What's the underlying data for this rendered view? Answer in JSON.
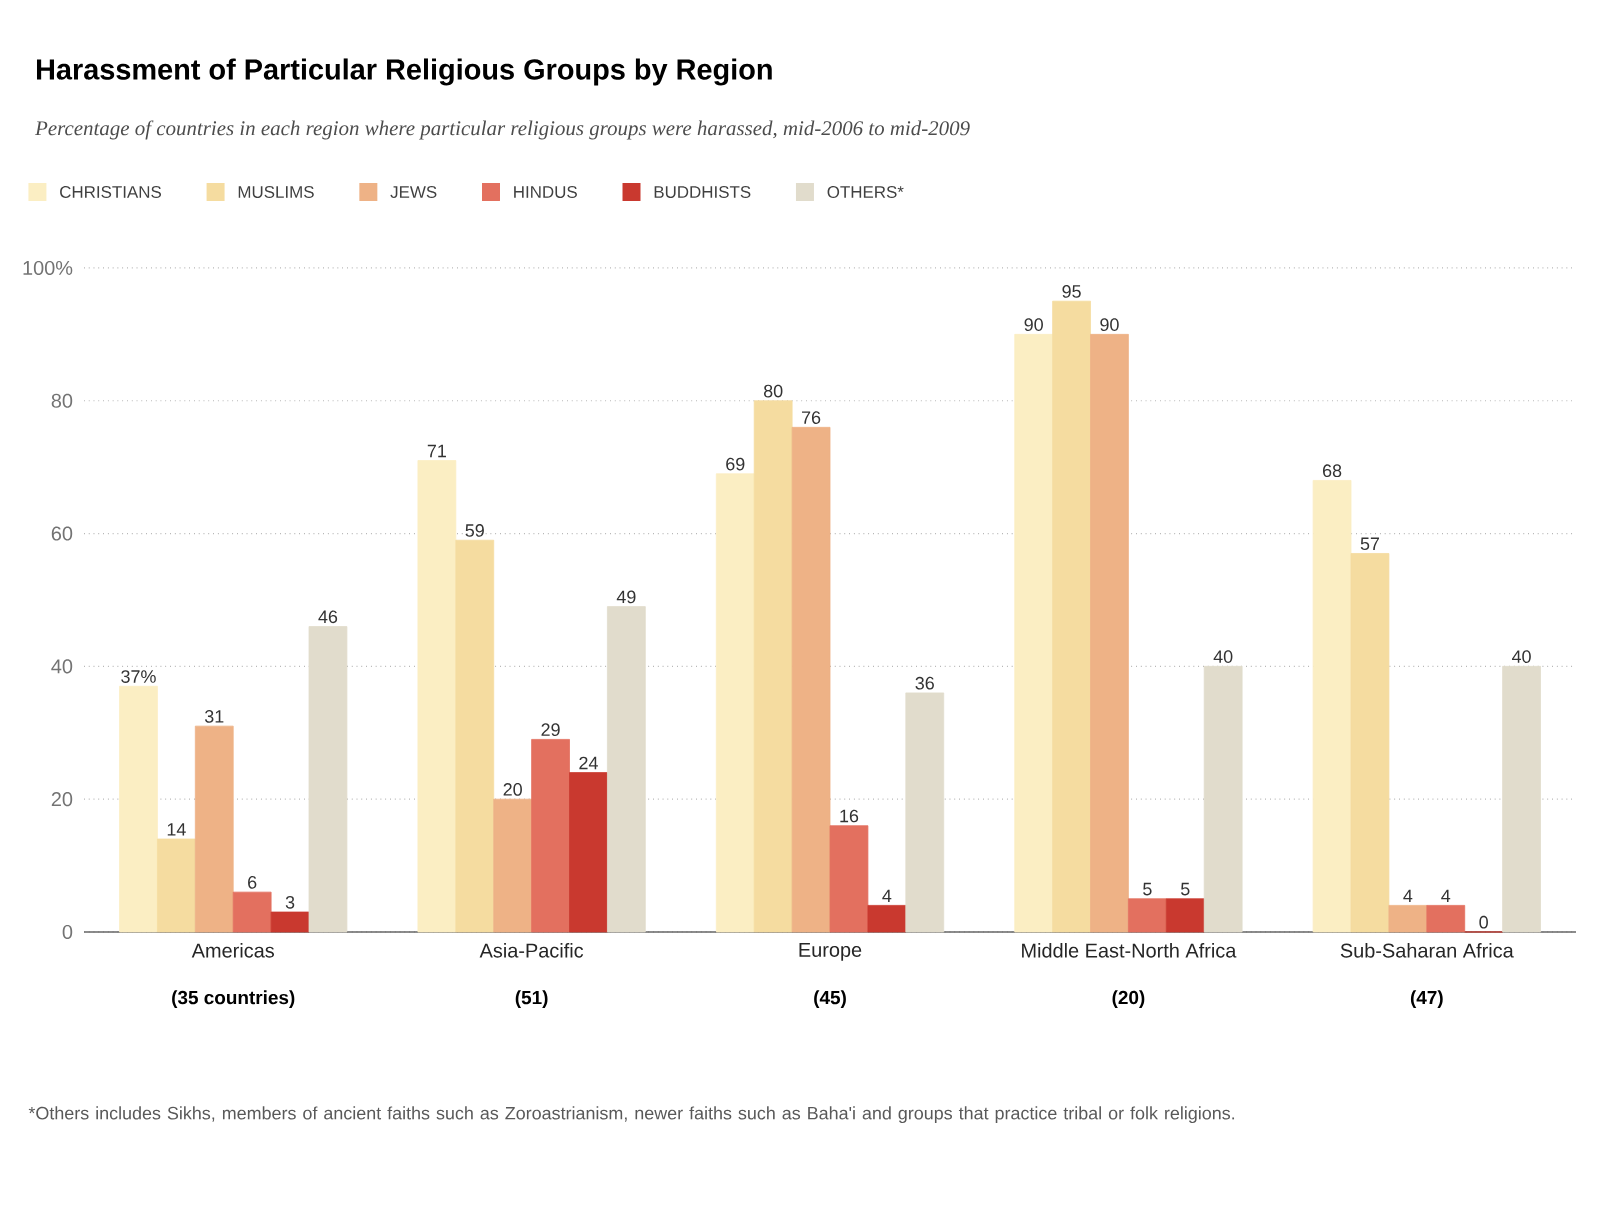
{
  "chart_data": {
    "type": "bar",
    "title": "Harassment of Particular Religious Groups by Region",
    "subtitle": "Percentage of countries in each region where particular religious groups were harassed, mid-2006 to mid-2009",
    "categories": [
      "Americas",
      "Asia-Pacific",
      "Europe",
      "Middle East-North Africa",
      "Sub-Saharan Africa"
    ],
    "series": [
      {
        "name": "CHRISTIANS",
        "color": "#fbeec3",
        "values": [
          37,
          71,
          69,
          90,
          68
        ],
        "value_labels": [
          "37%",
          "71",
          "69",
          "90",
          "68"
        ]
      },
      {
        "name": "MUSLIMS",
        "color": "#f5dca0",
        "values": [
          14,
          59,
          80,
          95,
          57
        ],
        "value_labels": [
          "14",
          "59",
          "80",
          "95",
          "57"
        ]
      },
      {
        "name": "JEWS",
        "color": "#eeb286",
        "values": [
          31,
          20,
          76,
          90,
          4
        ],
        "value_labels": [
          "31",
          "20",
          "76",
          "90",
          "4"
        ]
      },
      {
        "name": "HINDUS",
        "color": "#e3705f",
        "values": [
          6,
          29,
          16,
          5,
          4
        ],
        "value_labels": [
          "6",
          "29",
          "16",
          "5",
          "4"
        ]
      },
      {
        "name": "BUDDHISTS",
        "color": "#c9392f",
        "values": [
          3,
          24,
          4,
          5,
          0
        ],
        "value_labels": [
          "3",
          "24",
          "4",
          "5",
          "0"
        ]
      },
      {
        "name": "OTHERS*",
        "color": "#e1dccc",
        "values": [
          46,
          49,
          36,
          40,
          40
        ],
        "value_labels": [
          "46",
          "49",
          "36",
          "40",
          "40"
        ]
      }
    ],
    "ylim": [
      0,
      100
    ],
    "yticks": [
      0,
      20,
      40,
      60,
      80,
      {
        "value": 100,
        "label": "100%"
      }
    ],
    "grid": "y",
    "legend": "top left",
    "annotations": [
      "(35 countries)",
      "(51)",
      "(45)",
      "(20)",
      "(47)",
      "*Others includes Sikhs, members of ancient faiths such as Zoroastrianism, newer faiths such as Baha'i and groups that practice tribal or folk religions."
    ]
  }
}
